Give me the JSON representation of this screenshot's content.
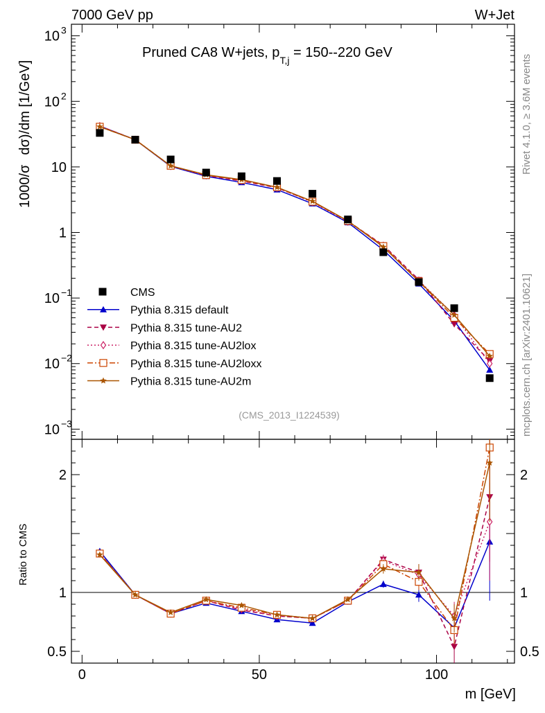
{
  "header": {
    "energy_label": "7000 GeV pp",
    "process_label": "W+Jet",
    "title_main": "Pruned CA8 W+jets, p",
    "title_sub": "T,j",
    "title_tail": " = 150--220 GeV",
    "side_rivet": "Rivet 4.1.0, ≥ 3.6M events",
    "side_mcplots": "mcplots.cern.ch [arXiv:2401.10621]",
    "analysis_id": "(CMS_2013_I1224539)"
  },
  "chart_data": {
    "type": "line",
    "x_axis": {
      "label": "m [GeV]",
      "range": [
        -3,
        122
      ],
      "ticks": [
        {
          "v": 0,
          "t": "0"
        },
        {
          "v": 50,
          "t": "50"
        },
        {
          "v": 100,
          "t": "100"
        }
      ]
    },
    "main_panel": {
      "ylabel_left": "1000/σ",
      "ylabel_right": "dσ)/dm [1/GeV]",
      "yscale": "log",
      "ylim": [
        0.0007,
        1500
      ],
      "yticks": [
        {
          "v": 0.001,
          "base": "10",
          "exp": "−3"
        },
        {
          "v": 0.01,
          "base": "10",
          "exp": "−2"
        },
        {
          "v": 0.1,
          "base": "10",
          "exp": "−1"
        },
        {
          "v": 1,
          "base": "1",
          "exp": ""
        },
        {
          "v": 10,
          "base": "10",
          "exp": ""
        },
        {
          "v": 100,
          "base": "10",
          "exp": "2"
        },
        {
          "v": 1000,
          "base": "10",
          "exp": "3"
        }
      ]
    },
    "ratio_panel": {
      "ylabel": "Ratio to CMS",
      "ylim": [
        0.4,
        2.3
      ],
      "yticks": [
        {
          "v": 0.5,
          "t": "0.5"
        },
        {
          "v": 1,
          "t": "1"
        },
        {
          "v": 2,
          "t": "2"
        }
      ],
      "reference": 1
    },
    "x": [
      5,
      15,
      25,
      35,
      45,
      55,
      65,
      75,
      85,
      95,
      105,
      115
    ],
    "data": {
      "name": "CMS",
      "values": [
        33,
        26,
        13,
        8.2,
        7.2,
        6.1,
        3.9,
        1.58,
        0.5,
        0.175,
        0.07,
        0.006
      ],
      "color": "#000000"
    },
    "series": [
      {
        "name": "Pythia 8.315 default",
        "color": "#0000cc",
        "dash": "",
        "marker": "triangle-up",
        "values": [
          42,
          26,
          10.2,
          7.2,
          5.8,
          4.5,
          2.75,
          1.42,
          0.54,
          0.165,
          0.045,
          0.008
        ],
        "ratio": [
          1.35,
          0.98,
          0.82,
          0.91,
          0.84,
          0.77,
          0.74,
          0.92,
          1.07,
          0.98,
          0.7,
          1.43
        ],
        "ratio_err": [
          0.02,
          0.01,
          0.01,
          0.015,
          0.015,
          0.015,
          0.015,
          0.02,
          0.03,
          0.06,
          0.1,
          0.5
        ]
      },
      {
        "name": "Pythia 8.315 tune-AU2",
        "color": "#aa0044",
        "dash": "6,4",
        "marker": "triangle-down",
        "values": [
          42,
          26,
          10.4,
          7.4,
          6.1,
          4.8,
          2.95,
          1.48,
          0.64,
          0.19,
          0.04,
          0.011
        ],
        "ratio": [
          1.33,
          0.98,
          0.82,
          0.93,
          0.85,
          0.8,
          0.78,
          0.93,
          1.28,
          1.17,
          0.54,
          1.81
        ],
        "ratio_err": [
          0.02,
          0.01,
          0.01,
          0.015,
          0.015,
          0.015,
          0.015,
          0.02,
          0.04,
          0.07,
          0.14,
          0.55
        ]
      },
      {
        "name": "Pythia 8.315 tune-AU2lox",
        "color": "#cc2266",
        "dash": "2,3",
        "marker": "diamond-open",
        "values": [
          42,
          26,
          10.3,
          7.4,
          6.2,
          4.8,
          2.9,
          1.46,
          0.63,
          0.185,
          0.055,
          0.01
        ],
        "ratio": [
          1.33,
          0.98,
          0.82,
          0.93,
          0.86,
          0.8,
          0.78,
          0.93,
          1.27,
          1.15,
          0.8,
          1.6
        ],
        "ratio_err": [
          0.02,
          0.01,
          0.01,
          0.015,
          0.015,
          0.015,
          0.015,
          0.02,
          0.04,
          0.07,
          0.12,
          0.5
        ]
      },
      {
        "name": "Pythia 8.315 tune-AU2loxx",
        "color": "#cc4400",
        "dash": "8,3,2,3",
        "marker": "square-open",
        "values": [
          41,
          26,
          10.4,
          7.5,
          6.3,
          4.9,
          2.95,
          1.5,
          0.62,
          0.18,
          0.05,
          0.014
        ],
        "ratio": [
          1.33,
          0.98,
          0.82,
          0.93,
          0.87,
          0.81,
          0.78,
          0.93,
          1.24,
          1.09,
          0.68,
          2.23
        ],
        "ratio_err": [
          0.02,
          0.01,
          0.01,
          0.015,
          0.015,
          0.015,
          0.015,
          0.02,
          0.04,
          0.07,
          0.12,
          0.5
        ]
      },
      {
        "name": "Pythia 8.315 tune-AU2m",
        "color": "#aa5500",
        "dash": "",
        "marker": "star",
        "values": [
          41,
          26,
          10.4,
          7.6,
          6.4,
          4.9,
          3.0,
          1.5,
          0.6,
          0.18,
          0.055,
          0.013
        ],
        "ratio": [
          1.32,
          0.98,
          0.83,
          0.94,
          0.89,
          0.81,
          0.78,
          0.94,
          1.2,
          1.17,
          0.78,
          2.1
        ],
        "ratio_err": [
          0.02,
          0.01,
          0.01,
          0.015,
          0.015,
          0.015,
          0.015,
          0.02,
          0.04,
          0.07,
          0.12,
          0.5
        ]
      }
    ]
  }
}
